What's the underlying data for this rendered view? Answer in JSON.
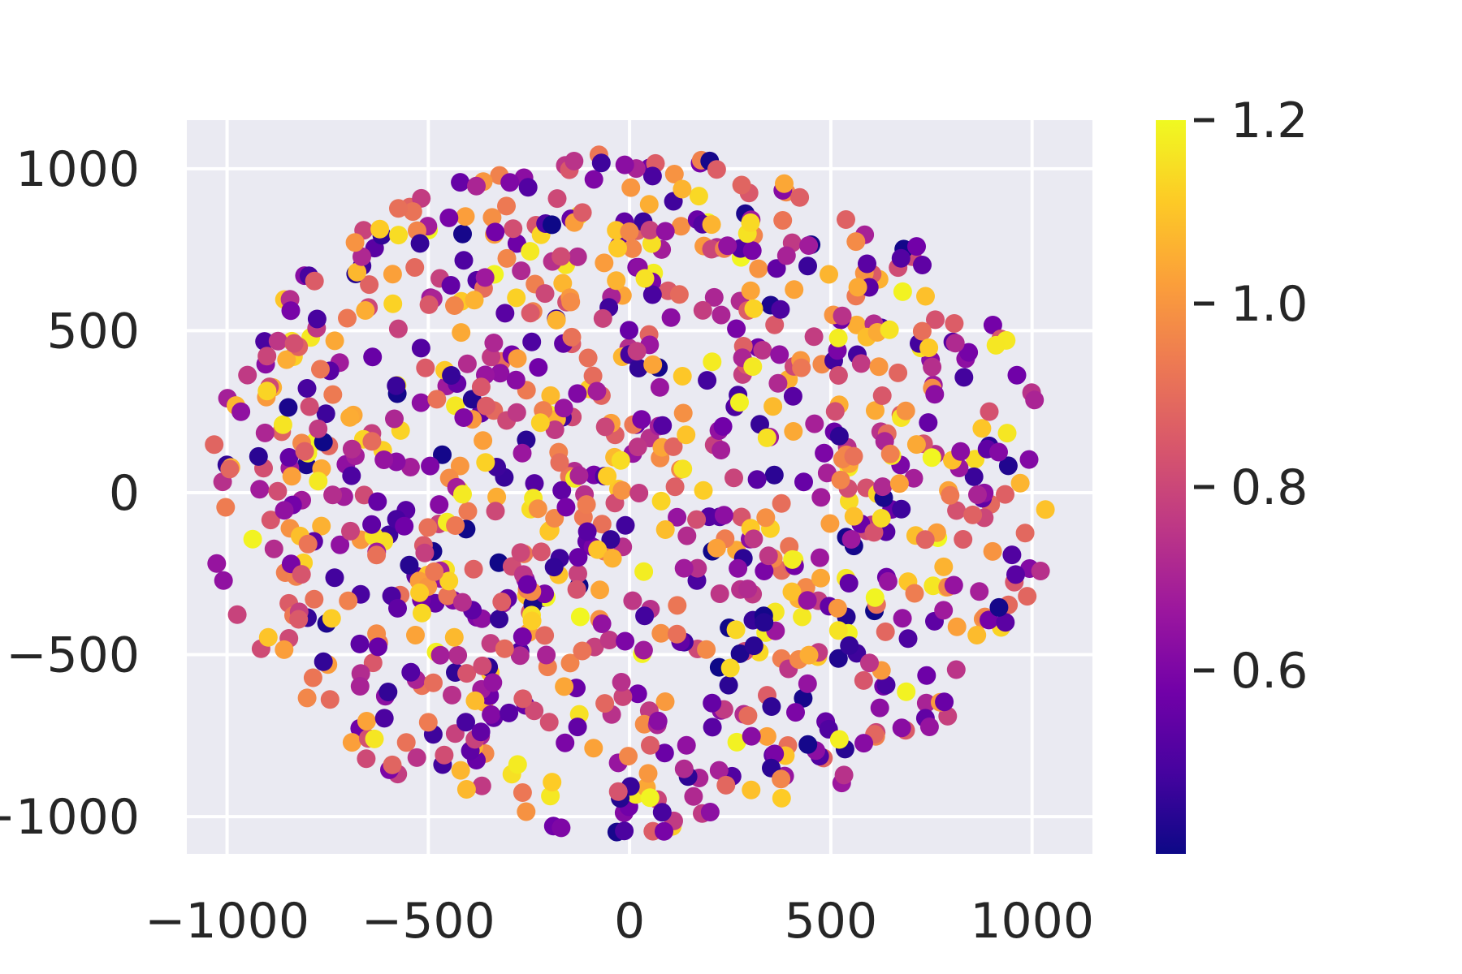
{
  "chart_data": {
    "type": "scatter",
    "title": "",
    "xlabel": "",
    "ylabel": "",
    "xlim": [
      -1100,
      1150
    ],
    "ylim": [
      -1115,
      1150
    ],
    "x_ticks": [
      -1000,
      -500,
      0,
      500,
      1000
    ],
    "x_tick_labels": [
      "−1000",
      "−500",
      "0",
      "500",
      "1000"
    ],
    "y_ticks": [
      -1000,
      -500,
      0,
      500,
      1000
    ],
    "y_tick_labels": [
      "−1000",
      "−500",
      "0",
      "500",
      "1000"
    ],
    "grid": true,
    "plot_background": "#eaeaf2",
    "grid_color": "#ffffff",
    "colormap": "plasma",
    "colormap_stops": [
      "#0d0887",
      "#46039f",
      "#7201a8",
      "#9c179e",
      "#bd3786",
      "#d8576b",
      "#ed7953",
      "#fb9f3a",
      "#fdca26",
      "#f0f921"
    ],
    "color_range": [
      0.4,
      1.2
    ],
    "colorbar": {
      "ticks": [
        0.6,
        0.8,
        1.0,
        1.2
      ],
      "tick_labels": [
        "0.6",
        "0.8",
        "1.0",
        "1.2"
      ],
      "placement": "right"
    },
    "points": {
      "count": 1000,
      "distribution": "uniform-disk",
      "center": [
        0,
        0
      ],
      "radius": 1050,
      "value_range": [
        0.4,
        1.2
      ]
    }
  }
}
